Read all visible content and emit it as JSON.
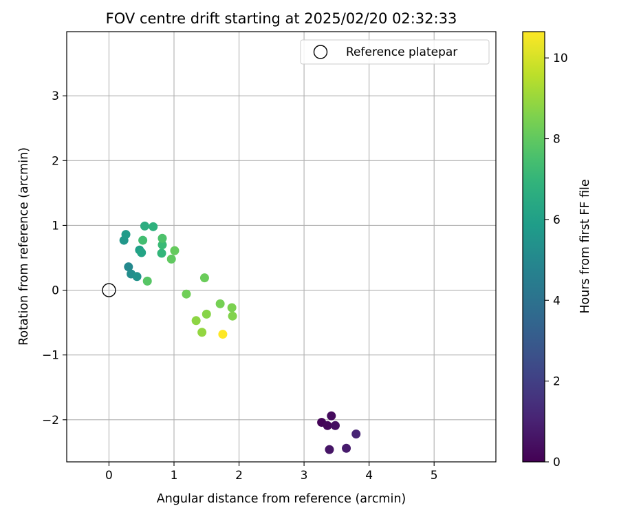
{
  "chart_data": {
    "type": "scatter",
    "title": "FOV centre drift starting at 2025/02/20 02:32:33",
    "xlabel": "Angular distance from reference (arcmin)",
    "ylabel": "Rotation from reference (arcmin)",
    "xlim": [
      -0.65,
      5.95
    ],
    "ylim": [
      -2.65,
      3.99
    ],
    "xticks": [
      0,
      1,
      2,
      3,
      4,
      5
    ],
    "yticks": [
      -2,
      -1,
      0,
      1,
      2,
      3
    ],
    "xtick_labels": [
      "0",
      "1",
      "2",
      "3",
      "4",
      "5"
    ],
    "ytick_labels": [
      "−2",
      "−1",
      "0",
      "1",
      "2",
      "3"
    ],
    "grid": true,
    "legend": {
      "placement": "top-right",
      "entries": [
        "Reference platepar"
      ]
    },
    "reference_point": {
      "x": 0,
      "y": 0
    },
    "colorbar": {
      "label": "Hours from first FF file",
      "range": [
        0,
        10.65
      ],
      "ticks": [
        0,
        2,
        4,
        6,
        8,
        10
      ],
      "tick_labels": [
        "0",
        "2",
        "4",
        "6",
        "8",
        "10"
      ],
      "colormap": "viridis"
    },
    "series": [
      {
        "points": [
          {
            "x": 3.27,
            "y": -2.04,
            "c": 0.1
          },
          {
            "x": 3.36,
            "y": -2.09,
            "c": 0.2
          },
          {
            "x": 3.42,
            "y": -1.94,
            "c": 0.3
          },
          {
            "x": 3.48,
            "y": -2.09,
            "c": 0.4
          },
          {
            "x": 3.39,
            "y": -2.46,
            "c": 0.6
          },
          {
            "x": 3.65,
            "y": -2.44,
            "c": 0.8
          },
          {
            "x": 3.8,
            "y": -2.22,
            "c": 1.1
          },
          {
            "x": 0.3,
            "y": 0.36,
            "c": 5.0
          },
          {
            "x": 0.34,
            "y": 0.25,
            "c": 5.2
          },
          {
            "x": 0.43,
            "y": 0.21,
            "c": 5.4
          },
          {
            "x": 0.23,
            "y": 0.77,
            "c": 5.6
          },
          {
            "x": 0.26,
            "y": 0.86,
            "c": 5.8
          },
          {
            "x": 0.47,
            "y": 0.62,
            "c": 6.0
          },
          {
            "x": 0.5,
            "y": 0.58,
            "c": 6.2
          },
          {
            "x": 0.55,
            "y": 0.99,
            "c": 6.6
          },
          {
            "x": 0.68,
            "y": 0.98,
            "c": 6.8
          },
          {
            "x": 0.81,
            "y": 0.57,
            "c": 7.0
          },
          {
            "x": 0.82,
            "y": 0.7,
            "c": 7.2
          },
          {
            "x": 0.52,
            "y": 0.77,
            "c": 7.4
          },
          {
            "x": 0.82,
            "y": 0.8,
            "c": 7.6
          },
          {
            "x": 0.59,
            "y": 0.14,
            "c": 7.8
          },
          {
            "x": 0.96,
            "y": 0.48,
            "c": 8.0
          },
          {
            "x": 1.01,
            "y": 0.61,
            "c": 8.1
          },
          {
            "x": 1.47,
            "y": 0.19,
            "c": 8.2
          },
          {
            "x": 1.19,
            "y": -0.06,
            "c": 8.3
          },
          {
            "x": 1.71,
            "y": -0.21,
            "c": 8.4
          },
          {
            "x": 1.89,
            "y": -0.27,
            "c": 8.5
          },
          {
            "x": 1.9,
            "y": -0.4,
            "c": 8.6
          },
          {
            "x": 1.5,
            "y": -0.37,
            "c": 8.7
          },
          {
            "x": 1.34,
            "y": -0.47,
            "c": 8.8
          },
          {
            "x": 1.43,
            "y": -0.65,
            "c": 8.9
          },
          {
            "x": 1.75,
            "y": -0.68,
            "c": 10.65
          }
        ]
      }
    ]
  }
}
